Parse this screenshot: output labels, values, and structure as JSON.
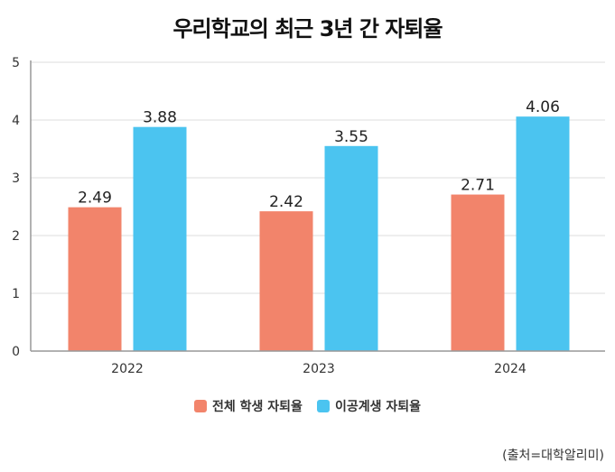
{
  "colors": {
    "series1": "#F2846B",
    "series2": "#4BC4F0",
    "grid": "#dddddd",
    "axis": "#999999"
  },
  "chart_data": {
    "type": "bar",
    "title": "우리학교의 최근 3년 간 자퇴율",
    "categories": [
      "2022",
      "2023",
      "2024"
    ],
    "series": [
      {
        "name": "전체 학생 자퇴율",
        "values": [
          2.49,
          2.42,
          2.71
        ]
      },
      {
        "name": "이공계생 자퇴율",
        "values": [
          3.88,
          3.55,
          4.06
        ]
      }
    ],
    "value_labels": [
      [
        "2.49",
        "2.42",
        "2.71"
      ],
      [
        "3.88",
        "3.55",
        "4.06"
      ]
    ],
    "ylim": [
      0,
      5
    ],
    "yticks": [
      "0",
      "1",
      "2",
      "3",
      "4",
      "5"
    ],
    "xlabel": "",
    "ylabel": "",
    "grid": true,
    "legend_position": "bottom-center"
  },
  "source": "(출처=대학알리미)"
}
